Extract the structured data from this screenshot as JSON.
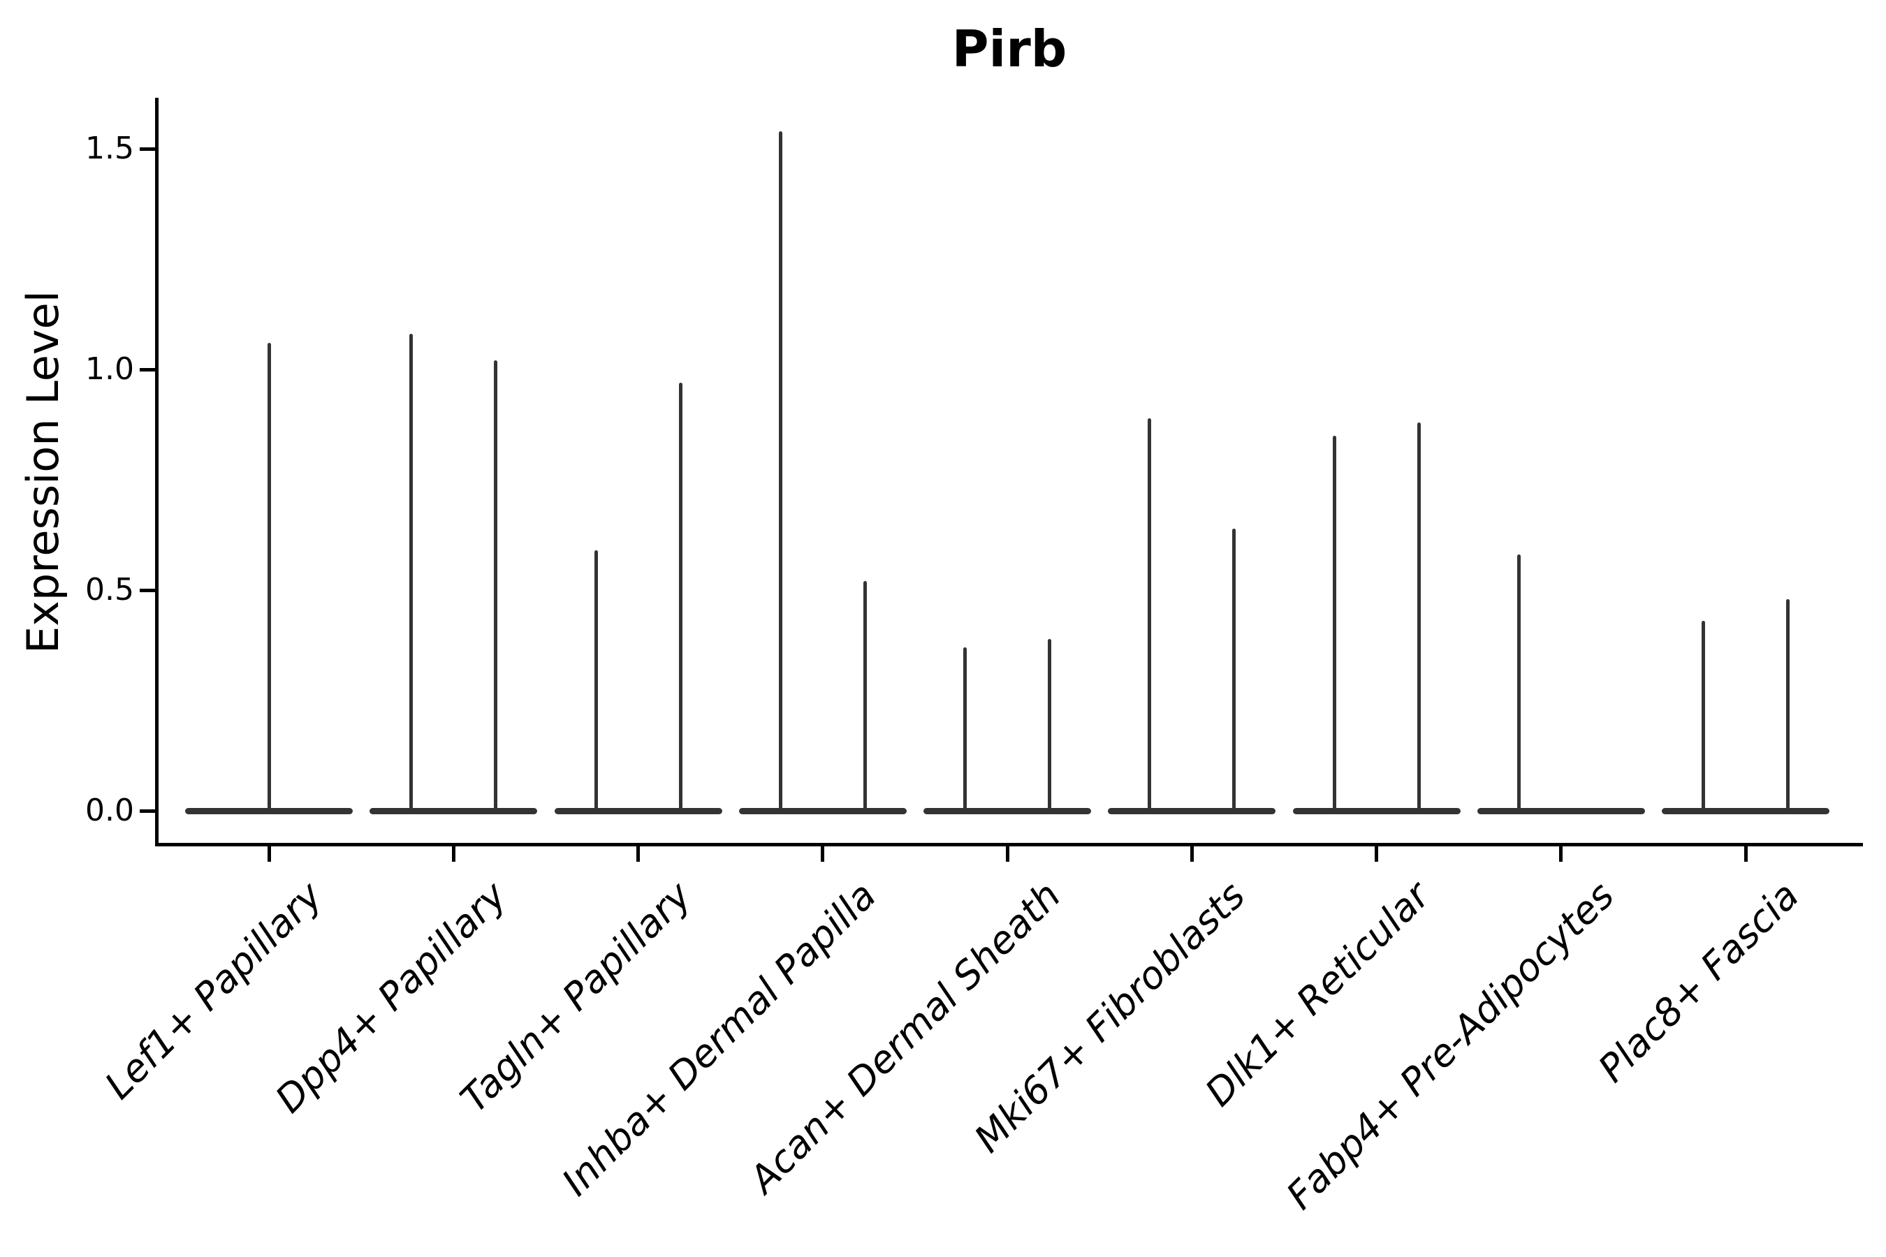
{
  "figure": {
    "title": "Pirb",
    "y_axis": {
      "label": "Expression Level",
      "tick_labels": [
        "0.0",
        "0.5",
        "1.0",
        "1.5"
      ]
    },
    "x_axis": {
      "tick_labels": [
        "Lef1+ Papillary",
        "Dpp4+ Papillary",
        "Tagln+ Papillary",
        "Inhba+ Dermal Papilla",
        "Acan+ Dermal Sheath",
        "Mki67+ Fibroblasts",
        "Dlk1+ Reticular",
        "Fabp4+ Pre-Adipocytes",
        "Plac8+ Fascia"
      ]
    }
  },
  "colors": {
    "ink": "#000000",
    "violin": "#333333",
    "background": "#ffffff"
  },
  "chart_data": {
    "type": "violin",
    "title": "Pirb",
    "xlabel": "",
    "ylabel": "Expression Level",
    "ylim": [
      -0.08,
      1.62
    ],
    "grid": false,
    "legend": "none",
    "x_tick_rotation": 45,
    "yticks": [
      {
        "value": 0.0,
        "label": "0.0"
      },
      {
        "value": 0.5,
        "label": "0.5"
      },
      {
        "value": 1.0,
        "label": "1.0"
      },
      {
        "value": 1.5,
        "label": "1.5"
      }
    ],
    "categories": [
      "Lef1+ Papillary",
      "Dpp4+ Papillary",
      "Tagln+ Papillary",
      "Inhba+ Dermal Papilla",
      "Acan+ Dermal Sheath",
      "Mki67+ Fibroblasts",
      "Dlk1+ Reticular",
      "Fabp4+ Pre-Adipocytes",
      "Plac8+ Fascia"
    ],
    "violins": [
      {
        "category": "Lef1+ Papillary",
        "spike_maxima": [
          1.06
        ]
      },
      {
        "category": "Dpp4+ Papillary",
        "spike_maxima": [
          1.08,
          1.02
        ]
      },
      {
        "category": "Tagln+ Papillary",
        "spike_maxima": [
          0.59,
          0.97
        ]
      },
      {
        "category": "Inhba+ Dermal Papilla",
        "spike_maxima": [
          1.54,
          0.52
        ]
      },
      {
        "category": "Acan+ Dermal Sheath",
        "spike_maxima": [
          0.37,
          0.39
        ]
      },
      {
        "category": "Mki67+ Fibroblasts",
        "spike_maxima": [
          0.89,
          0.64
        ]
      },
      {
        "category": "Dlk1+ Reticular",
        "spike_maxima": [
          0.85,
          0.88
        ]
      },
      {
        "category": "Fabp4+ Pre-Adipocytes",
        "spike_maxima": [
          0.58,
          0.0
        ]
      },
      {
        "category": "Plac8+ Fascia",
        "spike_maxima": [
          0.43,
          0.48
        ]
      }
    ]
  }
}
